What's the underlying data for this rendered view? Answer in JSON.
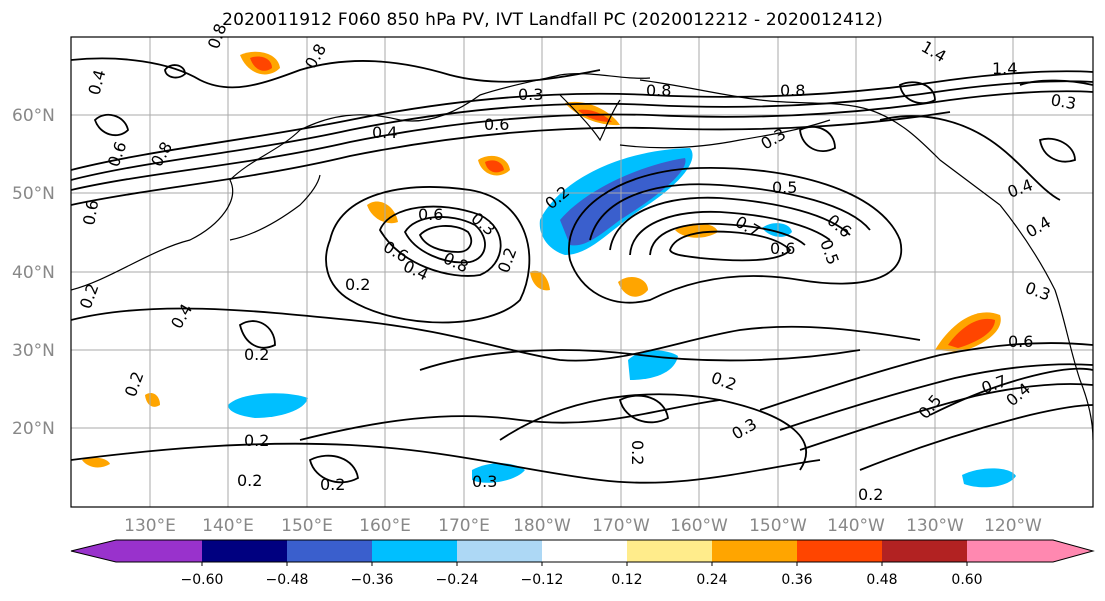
{
  "title": "2020011912 F060 850 hPa PV, IVT Landfall PC (2020012212 - 2020012412)",
  "lat_labels": [
    "60°N",
    "50°N",
    "40°N",
    "30°N",
    "20°N"
  ],
  "lon_labels": [
    "130°E",
    "140°E",
    "150°E",
    "160°E",
    "170°E",
    "180°W",
    "170°W",
    "160°W",
    "150°W",
    "140°W",
    "130°W",
    "120°W"
  ],
  "colorbar": {
    "colors": [
      "#9932cc",
      "#000080",
      "#3a5fcd",
      "#00bfff",
      "#add8f5",
      "#ffffff",
      "#ffec8b",
      "#ffa500",
      "#ff4500",
      "#b22222",
      "#ff88b0"
    ],
    "tick_labels": [
      "−0.60",
      "−0.48",
      "−0.36",
      "−0.24",
      "−0.12",
      "0.12",
      "0.24",
      "0.36",
      "0.48",
      "0.60"
    ]
  },
  "contour_labels": [
    "0.8",
    "0.8",
    "0.4",
    "0.4",
    "0.6",
    "0.3",
    "0.8",
    "0.8",
    "1.4",
    "1.4",
    "0.6",
    "0.8",
    "0.6",
    "0.2",
    "0.3",
    "0.6",
    "0.8",
    "0.4",
    "0.2",
    "0.5",
    "0.7",
    "0.6",
    "0.6",
    "0.3",
    "0.5",
    "0.2",
    "0.4",
    "0.3",
    "0.6",
    "0.7",
    "0.4",
    "0.5",
    "0.2",
    "0.2",
    "0.2",
    "0.2",
    "0.2",
    "0.3",
    "0.3",
    "0.2",
    "0.2",
    "0.4",
    "0.2",
    "0.2",
    "0.6",
    "0.4",
    "0.3"
  ]
}
